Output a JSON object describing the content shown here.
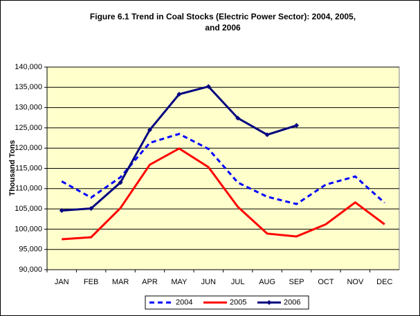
{
  "chart_data": {
    "type": "line",
    "title": [
      "Figure 6.1  Trend in Coal Stocks (Electric Power Sector): 2004, 2005,",
      "and 2006"
    ],
    "y_label": "Thousand Tons",
    "categories": [
      "JAN",
      "FEB",
      "MAR",
      "APR",
      "MAY",
      "JUN",
      "JUL",
      "AUG",
      "SEP",
      "OCT",
      "NOV",
      "DEC"
    ],
    "series": [
      {
        "name": "2004",
        "color": "#0000ff",
        "dashed": true,
        "markers": false,
        "values": [
          111800,
          107800,
          112800,
          121300,
          123500,
          119800,
          111500,
          108000,
          106200,
          111000,
          113000,
          106500
        ]
      },
      {
        "name": "2005",
        "color": "#ff0000",
        "dashed": false,
        "markers": false,
        "values": [
          97500,
          98000,
          105200,
          115900,
          119900,
          115300,
          105500,
          98900,
          98200,
          101200,
          106600,
          101200
        ]
      },
      {
        "name": "2006",
        "color": "#000080",
        "dashed": false,
        "markers": true,
        "values": [
          104600,
          105100,
          111500,
          124500,
          133300,
          135200,
          127400,
          123300,
          125600,
          null,
          null,
          null
        ]
      }
    ],
    "ylim": [
      90000,
      140000
    ],
    "yticks": [
      {
        "value": 90000,
        "label": "90,000"
      },
      {
        "value": 95000,
        "label": "95,000"
      },
      {
        "value": 100000,
        "label": "100,000"
      },
      {
        "value": 105000,
        "label": "105,000"
      },
      {
        "value": 110000,
        "label": "110,000"
      },
      {
        "value": 115000,
        "label": "115,000"
      },
      {
        "value": 120000,
        "label": "120,000"
      },
      {
        "value": 125000,
        "label": "125,000"
      },
      {
        "value": 130000,
        "label": "130,000"
      },
      {
        "value": 135000,
        "label": "135,000"
      },
      {
        "value": 140000,
        "label": "140,000"
      }
    ],
    "grid": true,
    "background": "#ffffcc",
    "legend": "bottom"
  }
}
